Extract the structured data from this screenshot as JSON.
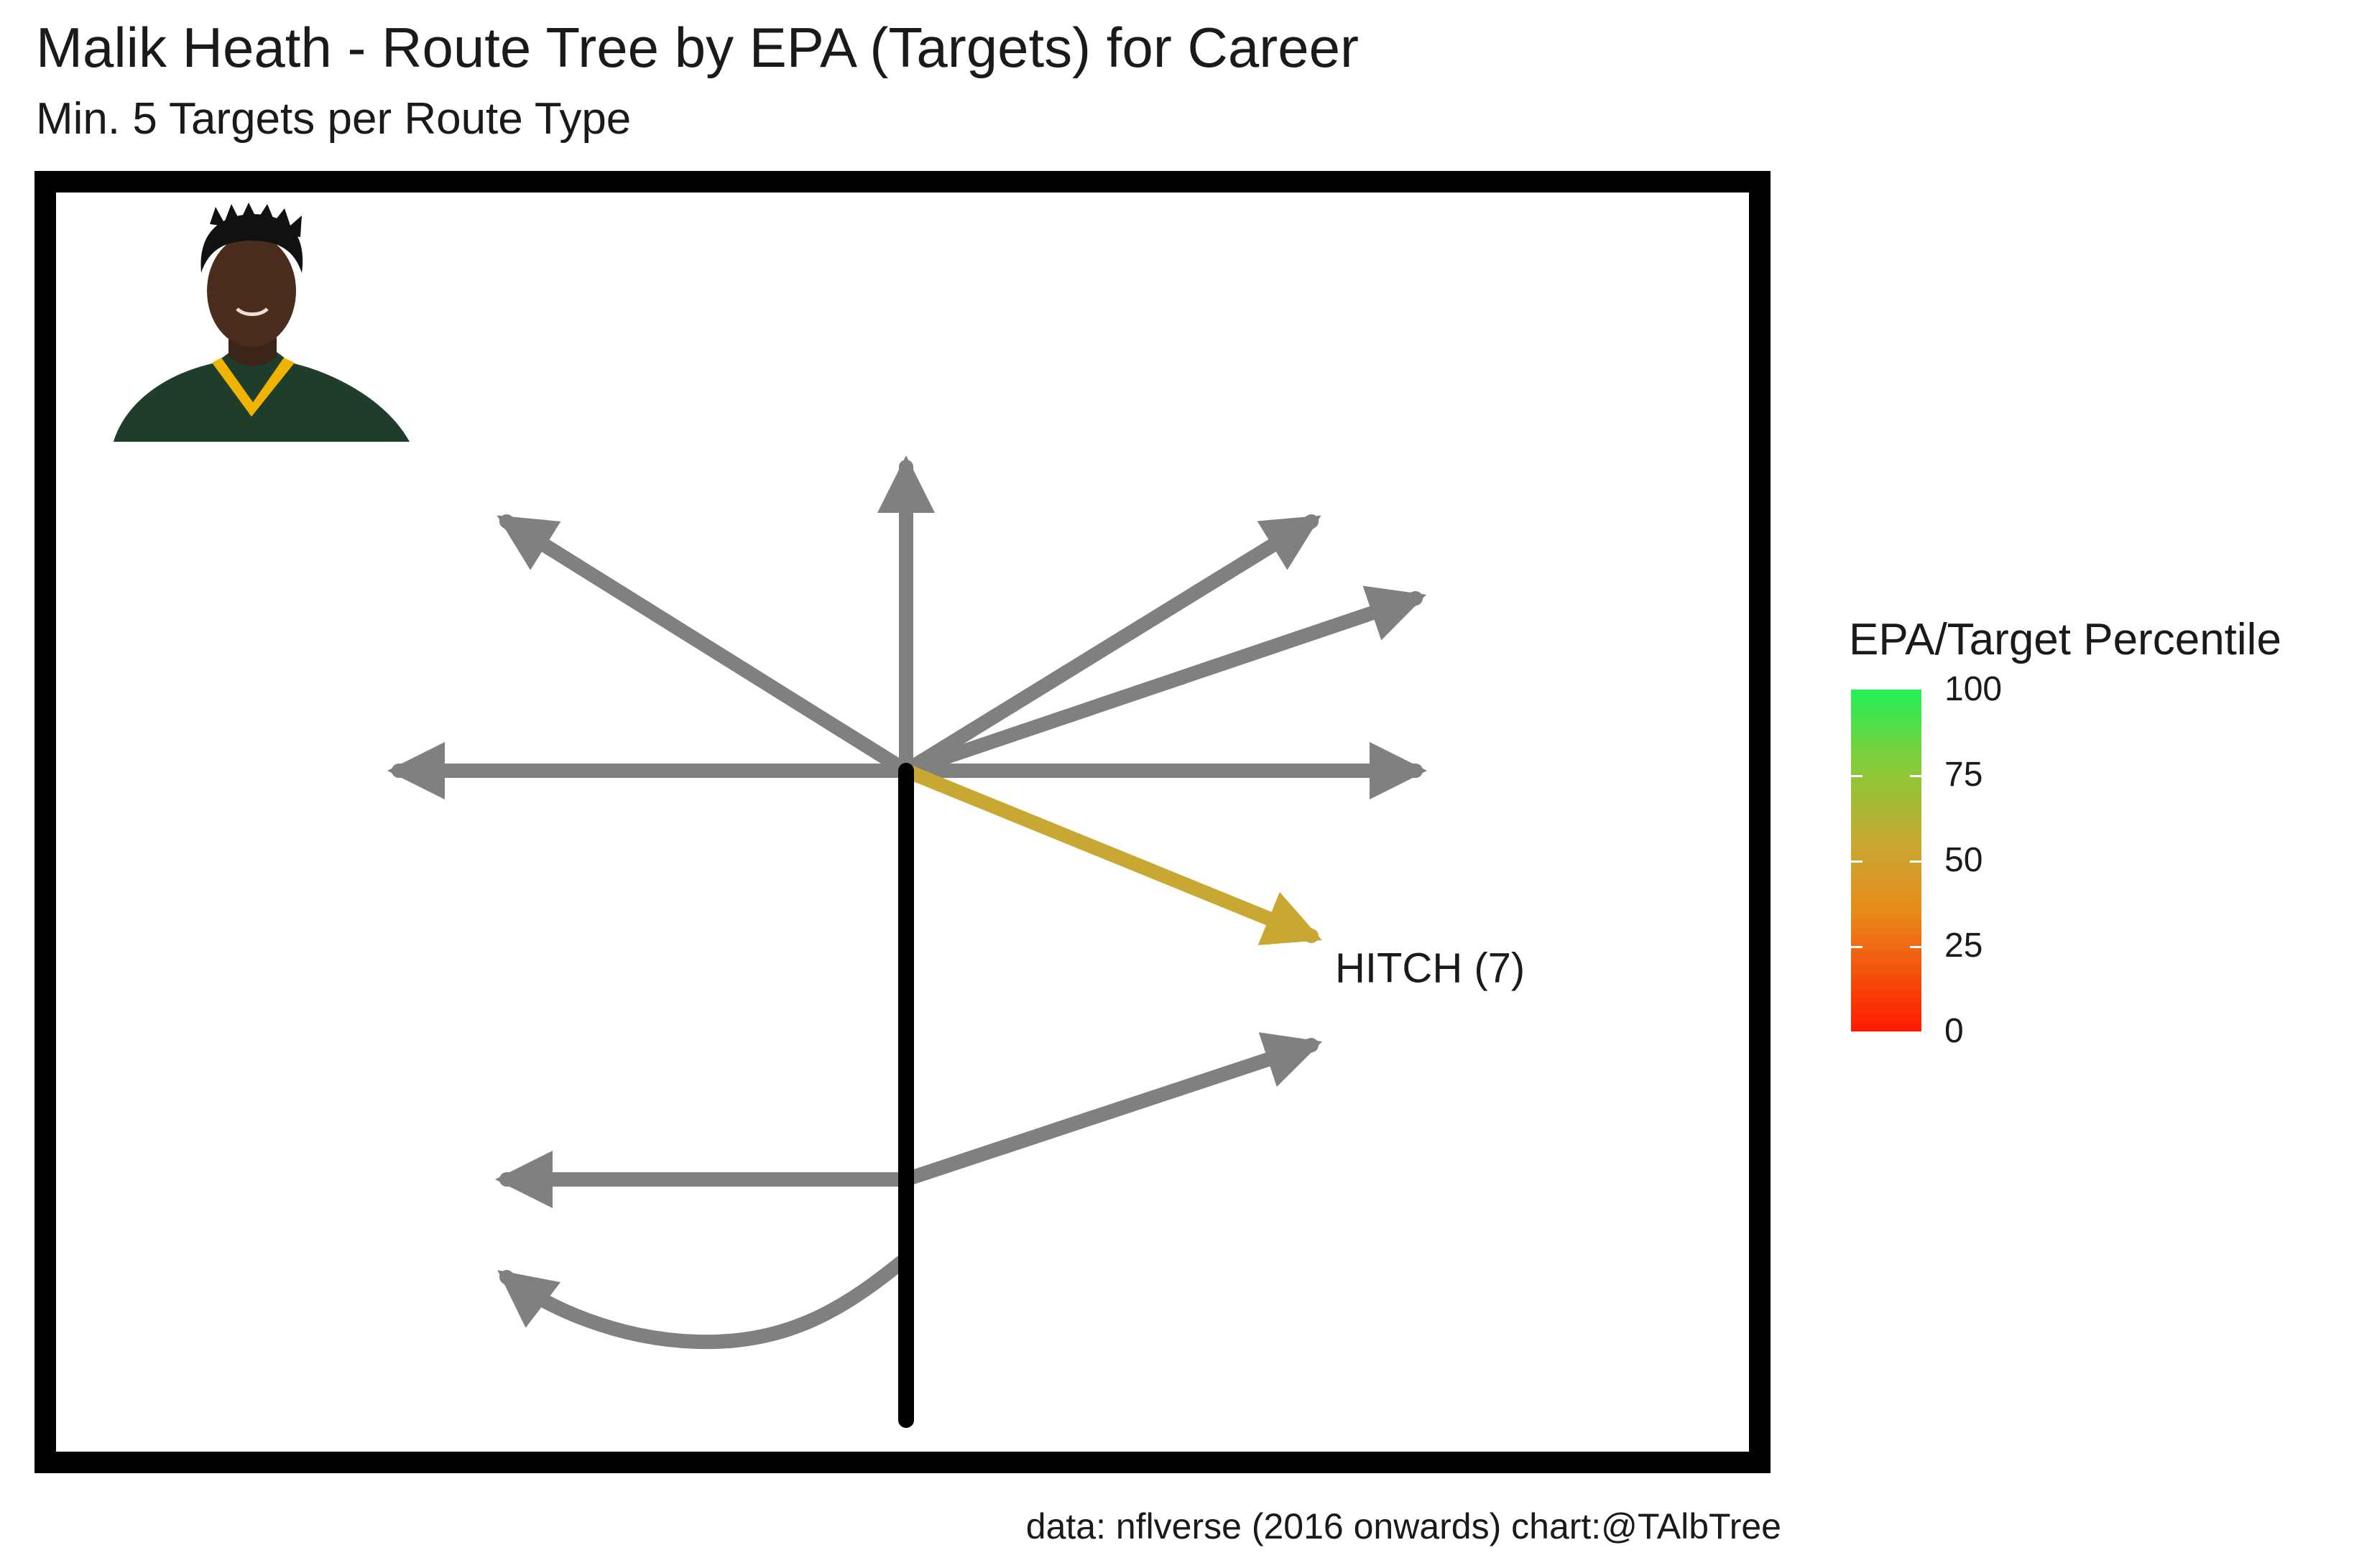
{
  "title": "Malik Heath - Route Tree by EPA (Targets) for Career",
  "subtitle": "Min. 5 Targets per Route Type",
  "caption": "data: nflverse (2016 onwards)  chart:@TAlbTree",
  "player_photo": {
    "name": "player-headshot-icon",
    "jersey_color": "#1f3d2b",
    "collar_color": "#f0b400"
  },
  "legend": {
    "title": "EPA/Target Percentile",
    "ticks": [
      "100",
      "75",
      "50",
      "25",
      "0"
    ],
    "colors": {
      "low": "#ff1a00",
      "mid": "#c8a832",
      "high": "#22f05a"
    }
  },
  "chart_data": {
    "type": "route-tree",
    "colors": {
      "untargeted": "#808080",
      "stem": "#000000",
      "highlight": "#c8a832"
    },
    "routes": [
      {
        "route": "GO",
        "highlighted": false
      },
      {
        "route": "POST",
        "highlighted": false
      },
      {
        "route": "CORNER",
        "highlighted": false
      },
      {
        "route": "DEEP OUT",
        "highlighted": false
      },
      {
        "route": "IN",
        "highlighted": false
      },
      {
        "route": "OUT",
        "highlighted": false
      },
      {
        "route": "HITCH",
        "label": "HITCH (7)",
        "targets": 7,
        "highlighted": true
      },
      {
        "route": "SLANT",
        "highlighted": false
      },
      {
        "route": "FLAT",
        "highlighted": false
      },
      {
        "route": "SCREEN",
        "highlighted": false
      }
    ]
  }
}
